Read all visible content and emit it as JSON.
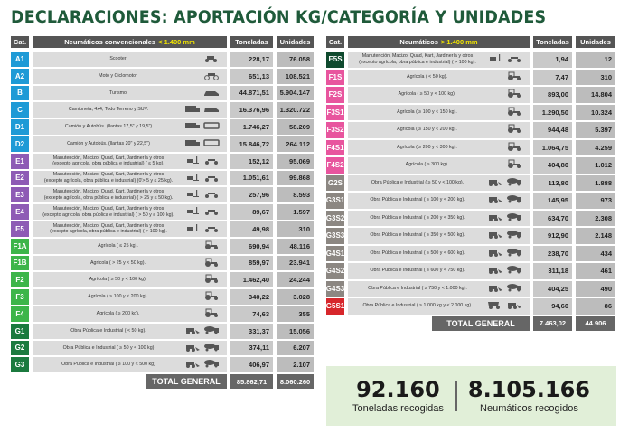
{
  "title": "DECLARACIONES: APORTACIÓN KG/CATEGORÍA Y UNIDADES",
  "colors": {
    "blue": "#1e9ad6",
    "purple": "#8e5bb5",
    "green": "#3db54a",
    "darkgreen": "#1b7a3e",
    "deepgreen": "#0f4a2e",
    "pink": "#e8559e",
    "gray": "#8c8782",
    "red": "#d7262b"
  },
  "left": {
    "headers": {
      "cat": "Cat.",
      "desc": "Neumáticos convencionales",
      "highlight": "< 1.400 mm",
      "ton": "Toneladas",
      "uni": "Unidades"
    },
    "rows": [
      {
        "cat": "A1",
        "color": "blue",
        "desc": "Scooter",
        "icons": [
          "scooter-icon"
        ],
        "ton": "228,17",
        "uni": "76.058"
      },
      {
        "cat": "A2",
        "color": "blue",
        "desc": "Moto y Ciclomotor",
        "icons": [
          "motorcycle-icon"
        ],
        "ton": "651,13",
        "uni": "108.521"
      },
      {
        "cat": "B",
        "color": "blue",
        "desc": "Turismo",
        "icons": [
          "car-icon"
        ],
        "ton": "44.871,51",
        "uni": "5.904.147"
      },
      {
        "cat": "C",
        "color": "blue",
        "desc": "Camioneta, 4x4, Todo Terreno y SUV.",
        "icons": [
          "van-icon",
          "suv-icon"
        ],
        "ton": "16.376,96",
        "uni": "1.320.722"
      },
      {
        "cat": "D1",
        "color": "blue",
        "desc": "Camión y Autobús. (llantas 17,5\" y 19,5\")",
        "icons": [
          "truck-icon",
          "bus-icon"
        ],
        "ton": "1.746,27",
        "uni": "58.209"
      },
      {
        "cat": "D2",
        "color": "blue",
        "desc": "Camión y Autobús. (llantas 20\" y 22,5\")",
        "icons": [
          "truck-icon",
          "bus-icon"
        ],
        "ton": "15.846,72",
        "uni": "264.112"
      },
      {
        "cat": "E1",
        "color": "purple",
        "desc": "Manutención, Macizo, Quad, Kart, Jardinería y otros\n(excepto agrícola, obra pública e industrial) ( ≤ 5 kg).",
        "icons": [
          "forklift-icon",
          "quad-icon"
        ],
        "ton": "152,12",
        "uni": "95.069"
      },
      {
        "cat": "E2",
        "color": "purple",
        "desc": "Manutención, Macizo, Quad, Kart, Jardinería y otros\n(excepto agrícola, obra pública e industrial) (0'> 5 y ≤ 25 kg).",
        "icons": [
          "forklift-icon",
          "quad-icon"
        ],
        "ton": "1.051,61",
        "uni": "99.868"
      },
      {
        "cat": "E3",
        "color": "purple",
        "desc": "Manutención, Macizo, Quad, Kart, Jardinería y otros\n(excepto agrícola, obra pública e industrial) ( > 25 y ≤ 50 kg).",
        "icons": [
          "forklift-icon",
          "quad-icon"
        ],
        "ton": "257,96",
        "uni": "8.593"
      },
      {
        "cat": "E4",
        "color": "purple",
        "desc": "Manutención, Macizo, Quad, Kart, Jardinería y otros\n(excepto agrícola, obra pública e industrial) ( > 50 y ≤ 100 kg).",
        "icons": [
          "forklift-icon",
          "quad-icon"
        ],
        "ton": "89,67",
        "uni": "1.597"
      },
      {
        "cat": "E5",
        "color": "purple",
        "desc": "Manutención, Macizo, Quad, Kart, Jardinería y otros\n(excepto agrícola, obra pública e industrial) ( > 100 kg).",
        "icons": [
          "forklift-icon",
          "quad-icon"
        ],
        "ton": "49,98",
        "uni": "310"
      },
      {
        "cat": "F1A",
        "color": "green",
        "desc": "Agrícola ( ≤ 25 kg).",
        "icons": [
          "tractor-icon"
        ],
        "ton": "690,94",
        "uni": "48.116"
      },
      {
        "cat": "F1B",
        "color": "green",
        "desc": "Agrícola ( > 25 y < 50 kg).",
        "icons": [
          "tractor-icon"
        ],
        "ton": "859,97",
        "uni": "23.941"
      },
      {
        "cat": "F2",
        "color": "green",
        "desc": "Agrícola ( ≥ 50 y < 100 kg).",
        "icons": [
          "tractor-icon"
        ],
        "ton": "1.462,40",
        "uni": "24.244"
      },
      {
        "cat": "F3",
        "color": "green",
        "desc": "Agrícola ( ≥ 100 y < 200 kg).",
        "icons": [
          "tractor-icon"
        ],
        "ton": "340,22",
        "uni": "3.028"
      },
      {
        "cat": "F4",
        "color": "green",
        "desc": "Agrícola ( ≥ 200 kg).",
        "icons": [
          "tractor-icon"
        ],
        "ton": "74,63",
        "uni": "355"
      },
      {
        "cat": "G1",
        "color": "darkgreen",
        "desc": "Obra Pública e Industrial (  < 50 kg).",
        "icons": [
          "loader-icon",
          "mixer-icon"
        ],
        "ton": "331,37",
        "uni": "15.056"
      },
      {
        "cat": "G2",
        "color": "darkgreen",
        "desc": "Obra Pública e Industrial ( ≥ 50 y < 100 kg)",
        "icons": [
          "loader-icon",
          "mixer-icon"
        ],
        "ton": "374,11",
        "uni": "6.207"
      },
      {
        "cat": "G3",
        "color": "darkgreen",
        "desc": "Obra Pública e Industrial ( ≥ 100 y < 500 kg)",
        "icons": [
          "loader-icon",
          "mixer-icon"
        ],
        "ton": "406,97",
        "uni": "2.107"
      }
    ],
    "total": {
      "label": "TOTAL GENERAL",
      "ton": "85.862,71",
      "uni": "8.060.260"
    }
  },
  "right": {
    "headers": {
      "cat": "Cat.",
      "desc": "Neumáticos",
      "highlight": "> 1.400 mm",
      "ton": "Toneladas",
      "uni": "Unidades"
    },
    "rows": [
      {
        "cat": "E5S",
        "color": "deepgreen",
        "desc": "Manutención, Macizo, Quad, Kart, Jardinería y otros\n(excepto agrícola, obra pública e industrial) ( > 100 kg).",
        "icons": [
          "forklift-icon",
          "quad-icon"
        ],
        "ton": "1,94",
        "uni": "12"
      },
      {
        "cat": "F1S",
        "color": "pink",
        "desc": "Agrícola ( < 50 kg).",
        "icons": [
          "tractor-icon"
        ],
        "ton": "7,47",
        "uni": "310"
      },
      {
        "cat": "F2S",
        "color": "pink",
        "desc": "Agrícola ( ≥ 50 y < 100 kg).",
        "icons": [
          "tractor-icon"
        ],
        "ton": "893,00",
        "uni": "14.804"
      },
      {
        "cat": "F3S1",
        "color": "pink",
        "desc": "Agrícola ( ≥ 100 y < 150 kg).",
        "icons": [
          "tractor-icon"
        ],
        "ton": "1.290,50",
        "uni": "10.324"
      },
      {
        "cat": "F3S2",
        "color": "pink",
        "desc": "Agrícola ( ≥ 150 y < 200 kg).",
        "icons": [
          "tractor-icon"
        ],
        "ton": "944,48",
        "uni": "5.397"
      },
      {
        "cat": "F4S1",
        "color": "pink",
        "desc": "Agrícola ( ≥ 200 y < 300 kg).",
        "icons": [
          "tractor-icon"
        ],
        "ton": "1.064,75",
        "uni": "4.259"
      },
      {
        "cat": "F4S2",
        "color": "pink",
        "desc": "Agrícola ( ≥ 300 kg).",
        "icons": [
          "tractor-icon"
        ],
        "ton": "404,80",
        "uni": "1.012"
      },
      {
        "cat": "G2S",
        "color": "gray",
        "desc": "Obra Pública e Industrial ( ≥ 50 y < 100 kg).",
        "icons": [
          "loader-icon",
          "mixer-icon"
        ],
        "ton": "113,80",
        "uni": "1.888"
      },
      {
        "cat": "G3S1",
        "color": "gray",
        "desc": "Obra Pública e Industrial ( ≥ 100 y < 200 kg).",
        "icons": [
          "loader-icon",
          "mixer-icon"
        ],
        "ton": "145,95",
        "uni": "973"
      },
      {
        "cat": "G3S2",
        "color": "gray",
        "desc": "Obra Pública e Industrial ( ≥ 200 y < 350 kg).",
        "icons": [
          "loader-icon",
          "mixer-icon"
        ],
        "ton": "634,70",
        "uni": "2.308"
      },
      {
        "cat": "G3S3",
        "color": "gray",
        "desc": "Obra Pública e Industrial ( ≥ 350 y < 500 kg).",
        "icons": [
          "loader-icon",
          "mixer-icon"
        ],
        "ton": "912,90",
        "uni": "2.148"
      },
      {
        "cat": "G4S1",
        "color": "gray",
        "desc": "Obra Pública e Industrial ( ≥ 500 y < 600 kg).",
        "icons": [
          "loader-icon",
          "mixer-icon"
        ],
        "ton": "238,70",
        "uni": "434"
      },
      {
        "cat": "G4S2",
        "color": "gray",
        "desc": "Obra Pública e Industrial ( ≥ 600 y < 750 kg).",
        "icons": [
          "loader-icon",
          "mixer-icon"
        ],
        "ton": "311,18",
        "uni": "461"
      },
      {
        "cat": "G4S3",
        "color": "gray",
        "desc": "Obra Pública e Industrial ( ≥ 750 y < 1.000 kg).",
        "icons": [
          "loader-icon",
          "mixer-icon"
        ],
        "ton": "404,25",
        "uni": "490"
      },
      {
        "cat": "G5S1",
        "color": "red",
        "desc": "Obra Pública e Industrial ( ≥ 1.000 kg y < 2.000 kg).",
        "icons": [
          "dump-truck-icon",
          "loader-icon"
        ],
        "ton": "94,60",
        "uni": "86"
      }
    ],
    "total": {
      "label": "TOTAL GENERAL",
      "ton": "7.463,02",
      "uni": "44.906"
    }
  },
  "summary": {
    "tons": "92.160",
    "tons_label": "Toneladas recogidas",
    "tires": "8.105.166",
    "tires_label": "Neumáticos recogidos"
  }
}
